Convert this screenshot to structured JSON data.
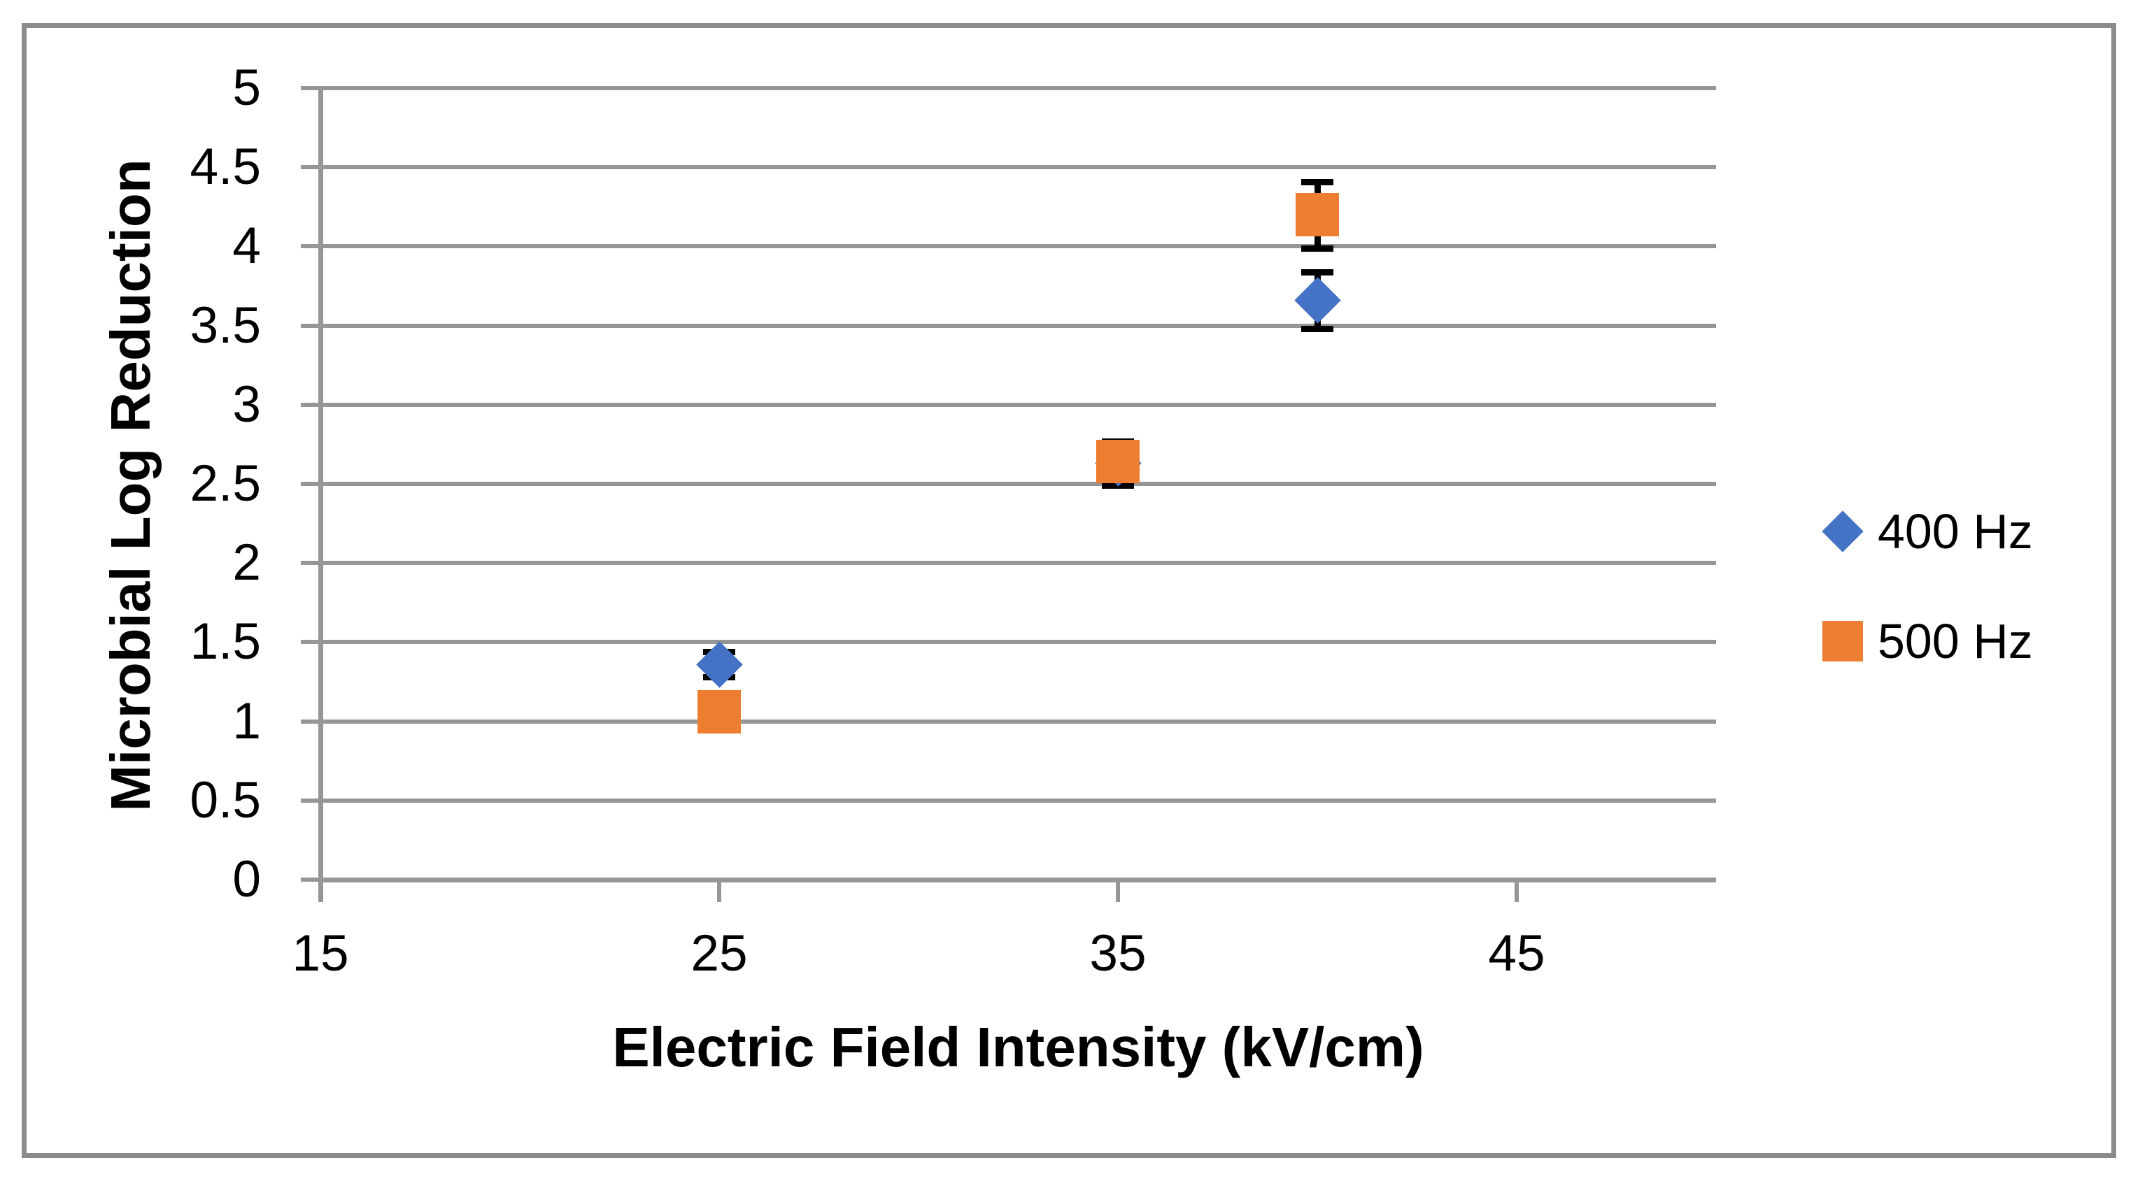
{
  "styles": {
    "background": "#ffffff",
    "figure_border_color": "#8b8b8b",
    "grid_color": "#969696",
    "axis_color": "#969696",
    "text_color": "#000000",
    "error_bar_color": "#000000"
  },
  "chart_data": {
    "type": "scatter",
    "title": "",
    "xlabel": "Electric Field Intensity (kV/cm)",
    "ylabel": "Microbial Log Reduction",
    "xlim": [
      15,
      50
    ],
    "ylim": [
      0,
      5
    ],
    "x_ticks": [
      15,
      25,
      35,
      45
    ],
    "y_ticks": [
      0,
      0.5,
      1,
      1.5,
      2,
      2.5,
      3,
      3.5,
      4,
      4.5,
      5
    ],
    "grid": "horizontal gridlines at every 0.5",
    "legend_position": "right",
    "error_bars": true,
    "series": [
      {
        "name": "400 Hz",
        "marker": "diamond",
        "color": "#4472C4",
        "points": [
          {
            "x": 25,
            "y": 1.36,
            "err": 0.08
          },
          {
            "x": 35,
            "y": 2.63,
            "err": 0.14
          },
          {
            "x": 40,
            "y": 3.66,
            "err": 0.18
          }
        ]
      },
      {
        "name": "500 Hz",
        "marker": "square",
        "color": "#ED7D31",
        "points": [
          {
            "x": 25,
            "y": 1.06,
            "err": 0.06
          },
          {
            "x": 35,
            "y": 2.64,
            "err": 0.1
          },
          {
            "x": 40,
            "y": 4.2,
            "err": 0.21
          }
        ]
      }
    ]
  }
}
